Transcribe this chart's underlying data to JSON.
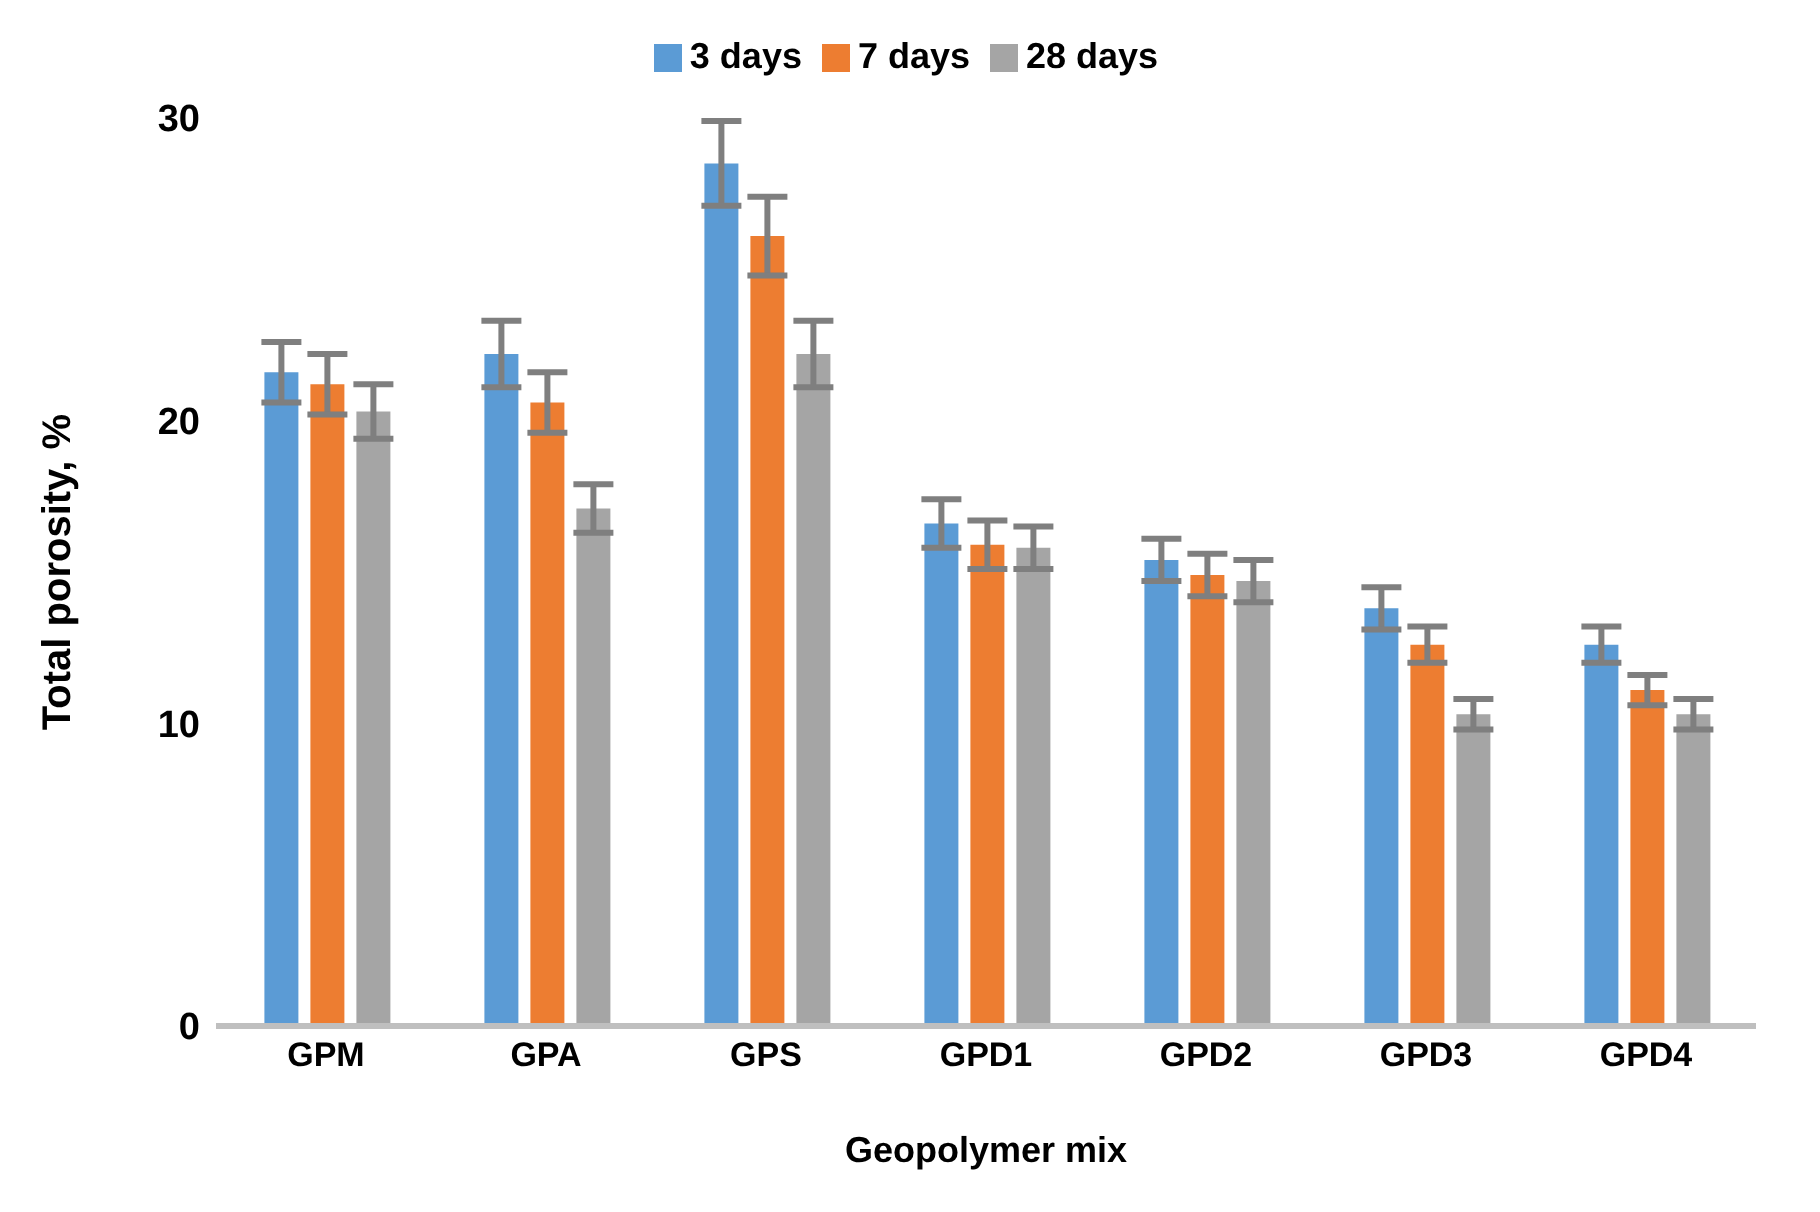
{
  "chart_data": {
    "type": "bar",
    "xlabel": "Geopolymer mix",
    "ylabel": "Total porosity, %",
    "categories": [
      "GPM",
      "GPA",
      "GPS",
      "GPD1",
      "GPD2",
      "GPD3",
      "GPD4"
    ],
    "series": [
      {
        "name": "3 days",
        "color": "#5b9bd5",
        "values": [
          21.6,
          22.2,
          28.5,
          16.6,
          15.4,
          13.8,
          12.6
        ],
        "errors": [
          1.0,
          1.1,
          1.4,
          0.8,
          0.7,
          0.7,
          0.6
        ]
      },
      {
        "name": "7 days",
        "color": "#ed7d31",
        "values": [
          21.2,
          20.6,
          26.1,
          15.9,
          14.9,
          12.6,
          11.1
        ],
        "errors": [
          1.0,
          1.0,
          1.3,
          0.8,
          0.7,
          0.6,
          0.5
        ]
      },
      {
        "name": "28 days",
        "color": "#a5a5a5",
        "values": [
          20.3,
          17.1,
          22.2,
          15.8,
          14.7,
          10.3,
          10.3
        ],
        "errors": [
          0.9,
          0.8,
          1.1,
          0.7,
          0.7,
          0.5,
          0.5
        ]
      }
    ],
    "ylim": [
      0,
      30
    ],
    "yticks": [
      0,
      10,
      20,
      30
    ],
    "grid": false,
    "legend": "top"
  }
}
